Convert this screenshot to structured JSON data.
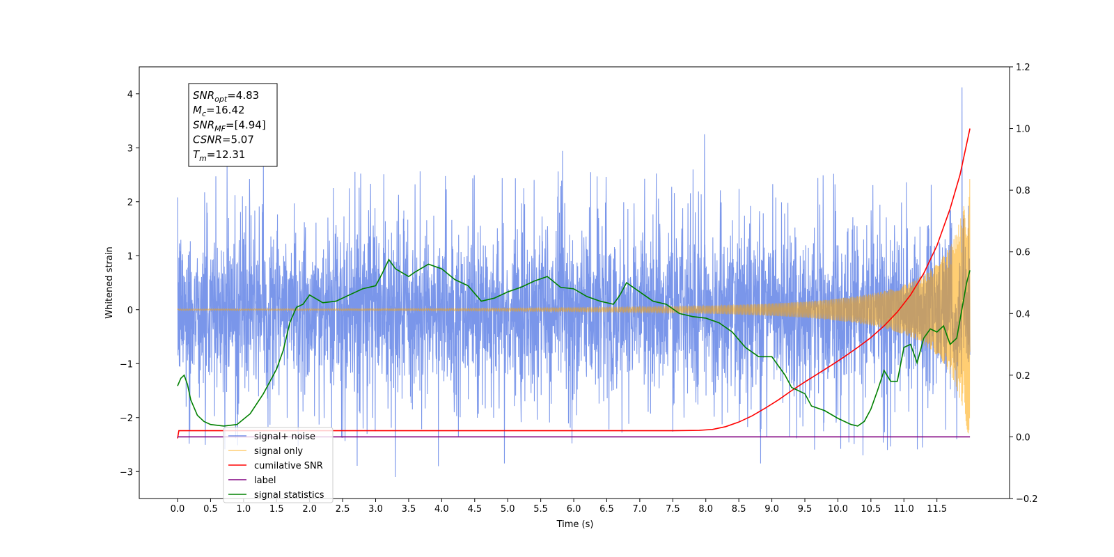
{
  "chart_data": {
    "type": "line",
    "xlabel": "Time (s)",
    "ylabel": "Whitened strain",
    "xlim": [
      -0.58,
      12.6
    ],
    "ylim": [
      -3.5,
      4.5
    ],
    "ylim_right": [
      -0.2,
      1.2
    ],
    "x_ticks": [
      "0.0",
      "0.5",
      "1.0",
      "1.5",
      "2.0",
      "2.5",
      "3.0",
      "3.5",
      "4.0",
      "4.5",
      "5.0",
      "5.5",
      "6.0",
      "6.5",
      "7.0",
      "7.5",
      "8.0",
      "8.5",
      "9.0",
      "9.5",
      "10.0",
      "10.5",
      "11.0",
      "11.5"
    ],
    "y_ticks_left": [
      "4",
      "3",
      "2",
      "1",
      "0",
      "−1",
      "−2",
      "−3"
    ],
    "y_ticks_right": [
      "1.2",
      "1.0",
      "0.8",
      "0.6",
      "0.4",
      "0.2",
      "0.0",
      "−0.2"
    ],
    "legend_position": "lower-left",
    "annotation": {
      "lines": [
        {
          "sym": "SNR",
          "sub": "opt",
          "rest": "=4.83"
        },
        {
          "sym": "M",
          "sub": "c",
          "rest": "=16.42"
        },
        {
          "sym": "SNR",
          "sub": "MF",
          "rest": "=[4.94]"
        },
        {
          "sym": "CSNR",
          "sub": "",
          "rest": "=5.07"
        },
        {
          "sym": "T",
          "sub": "m",
          "rest": "=12.31"
        }
      ]
    },
    "series": [
      {
        "name": "signal+ noise",
        "color": "#4169e1",
        "axis": "left",
        "kind": "noise",
        "x_range": [
          0,
          12.0
        ],
        "envelope": [
          -1.5,
          1.5
        ],
        "peaks": [
          [
            0.75,
            2.75
          ],
          [
            1.3,
            2.7
          ],
          [
            3.3,
            -3.1
          ],
          [
            3.95,
            -2.9
          ],
          [
            4.95,
            -2.85
          ],
          [
            7.98,
            3.25
          ],
          [
            8.83,
            -2.85
          ],
          [
            10.38,
            -2.7
          ],
          [
            10.75,
            -2.6
          ],
          [
            11.88,
            4.12
          ],
          [
            11.8,
            -2.4
          ]
        ]
      },
      {
        "name": "signal only",
        "color": "#ffa500",
        "axis": "left",
        "kind": "chirp",
        "x_range": [
          0,
          12.0
        ]
      },
      {
        "name": "cumilative SNR",
        "color": "#ff0000",
        "axis": "right",
        "x": [
          0,
          0.02,
          1,
          2,
          3,
          4,
          5,
          6,
          7,
          7.5,
          7.9,
          8.1,
          8.3,
          8.5,
          8.7,
          8.9,
          9.1,
          9.3,
          9.5,
          9.7,
          9.9,
          10.1,
          10.3,
          10.5,
          10.7,
          10.9,
          11.1,
          11.3,
          11.5,
          11.7,
          11.85,
          12.0
        ],
        "y": [
          -0.005,
          0.02,
          0.02,
          0.02,
          0.02,
          0.02,
          0.02,
          0.02,
          0.02,
          0.02,
          0.021,
          0.024,
          0.033,
          0.048,
          0.068,
          0.093,
          0.12,
          0.15,
          0.178,
          0.205,
          0.232,
          0.26,
          0.29,
          0.322,
          0.36,
          0.405,
          0.46,
          0.53,
          0.62,
          0.74,
          0.85,
          1.0
        ]
      },
      {
        "name": "label",
        "color": "#800080",
        "axis": "right",
        "x": [
          0,
          12.0
        ],
        "y": [
          0.0,
          0.0
        ]
      },
      {
        "name": "signal statistics",
        "color": "#008000",
        "axis": "right",
        "x": [
          0,
          0.05,
          0.1,
          0.15,
          0.2,
          0.3,
          0.4,
          0.5,
          0.7,
          0.9,
          1.1,
          1.3,
          1.5,
          1.6,
          1.7,
          1.8,
          1.9,
          2.0,
          2.2,
          2.4,
          2.6,
          2.8,
          3.0,
          3.1,
          3.2,
          3.3,
          3.5,
          3.6,
          3.8,
          4.0,
          4.2,
          4.4,
          4.6,
          4.8,
          5.0,
          5.2,
          5.4,
          5.6,
          5.8,
          6.0,
          6.2,
          6.4,
          6.6,
          6.7,
          6.8,
          7.0,
          7.2,
          7.4,
          7.6,
          7.8,
          8.0,
          8.2,
          8.4,
          8.6,
          8.8,
          9.0,
          9.2,
          9.3,
          9.5,
          9.6,
          9.8,
          10.0,
          10.2,
          10.3,
          10.4,
          10.5,
          10.6,
          10.7,
          10.8,
          10.9,
          11.0,
          11.1,
          11.2,
          11.3,
          11.4,
          11.5,
          11.6,
          11.7,
          11.8,
          11.9,
          11.95,
          12.0
        ],
        "y": [
          0.165,
          0.19,
          0.2,
          0.17,
          0.12,
          0.07,
          0.05,
          0.04,
          0.035,
          0.04,
          0.075,
          0.14,
          0.22,
          0.28,
          0.37,
          0.42,
          0.43,
          0.46,
          0.435,
          0.44,
          0.46,
          0.48,
          0.49,
          0.53,
          0.575,
          0.545,
          0.52,
          0.535,
          0.56,
          0.545,
          0.51,
          0.49,
          0.44,
          0.45,
          0.47,
          0.485,
          0.505,
          0.52,
          0.485,
          0.48,
          0.455,
          0.44,
          0.43,
          0.46,
          0.5,
          0.47,
          0.44,
          0.43,
          0.4,
          0.39,
          0.385,
          0.37,
          0.34,
          0.29,
          0.26,
          0.26,
          0.2,
          0.16,
          0.14,
          0.1,
          0.085,
          0.06,
          0.04,
          0.035,
          0.05,
          0.09,
          0.15,
          0.215,
          0.18,
          0.18,
          0.29,
          0.3,
          0.24,
          0.32,
          0.35,
          0.34,
          0.36,
          0.3,
          0.32,
          0.44,
          0.5,
          0.54
        ]
      }
    ]
  }
}
